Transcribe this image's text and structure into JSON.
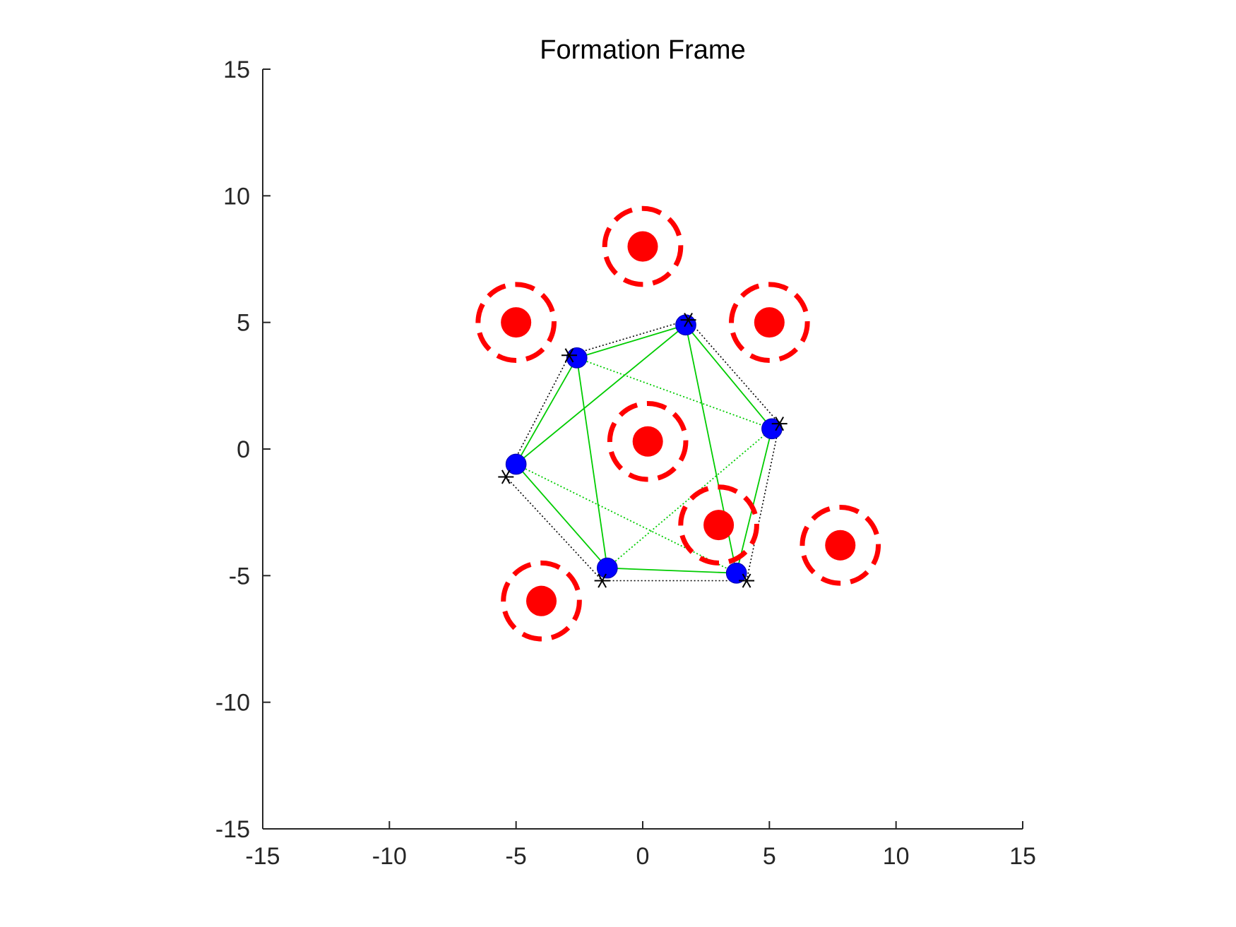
{
  "chart_data": {
    "type": "scatter",
    "title": "Formation Frame",
    "xlabel": "",
    "ylabel": "",
    "xlim": [
      -15,
      15
    ],
    "ylim": [
      -15,
      15
    ],
    "x_ticks": [
      "-15",
      "-10",
      "-5",
      "0",
      "5",
      "10",
      "15"
    ],
    "y_ticks": [
      "15",
      "10",
      "5",
      "0",
      "-5",
      "-10",
      "-15"
    ],
    "grid": false,
    "legend": "none",
    "obstacles": {
      "color": "#ff0000",
      "centers": [
        [
          0,
          8
        ],
        [
          -5,
          5
        ],
        [
          5,
          5
        ],
        [
          0.2,
          0.3
        ],
        [
          3,
          -3
        ],
        [
          7.8,
          -3.8
        ],
        [
          -4,
          -6
        ]
      ],
      "safety_radius": 1.5
    },
    "agents": {
      "color": "#0000ff",
      "positions": [
        [
          1.7,
          4.9
        ],
        [
          -2.6,
          3.6
        ],
        [
          -5.0,
          -0.6
        ],
        [
          -1.4,
          -4.7
        ],
        [
          3.7,
          -4.9
        ],
        [
          5.1,
          0.8
        ]
      ]
    },
    "targets": {
      "color": "#000000",
      "marker": "asterisk",
      "positions": [
        [
          1.8,
          5.1
        ],
        [
          -2.9,
          3.7
        ],
        [
          -5.4,
          -1.1
        ],
        [
          -1.6,
          -5.2
        ],
        [
          4.1,
          -5.2
        ],
        [
          5.4,
          1.0
        ]
      ]
    },
    "links": {
      "color": "#00cc00",
      "solid_pairs": [
        [
          0,
          1
        ],
        [
          1,
          2
        ],
        [
          2,
          3
        ],
        [
          3,
          4
        ],
        [
          4,
          5
        ],
        [
          5,
          0
        ],
        [
          0,
          2
        ],
        [
          1,
          3
        ],
        [
          0,
          4
        ]
      ],
      "dotted_pairs": [
        [
          1,
          5
        ],
        [
          2,
          4
        ],
        [
          3,
          5
        ]
      ]
    }
  }
}
